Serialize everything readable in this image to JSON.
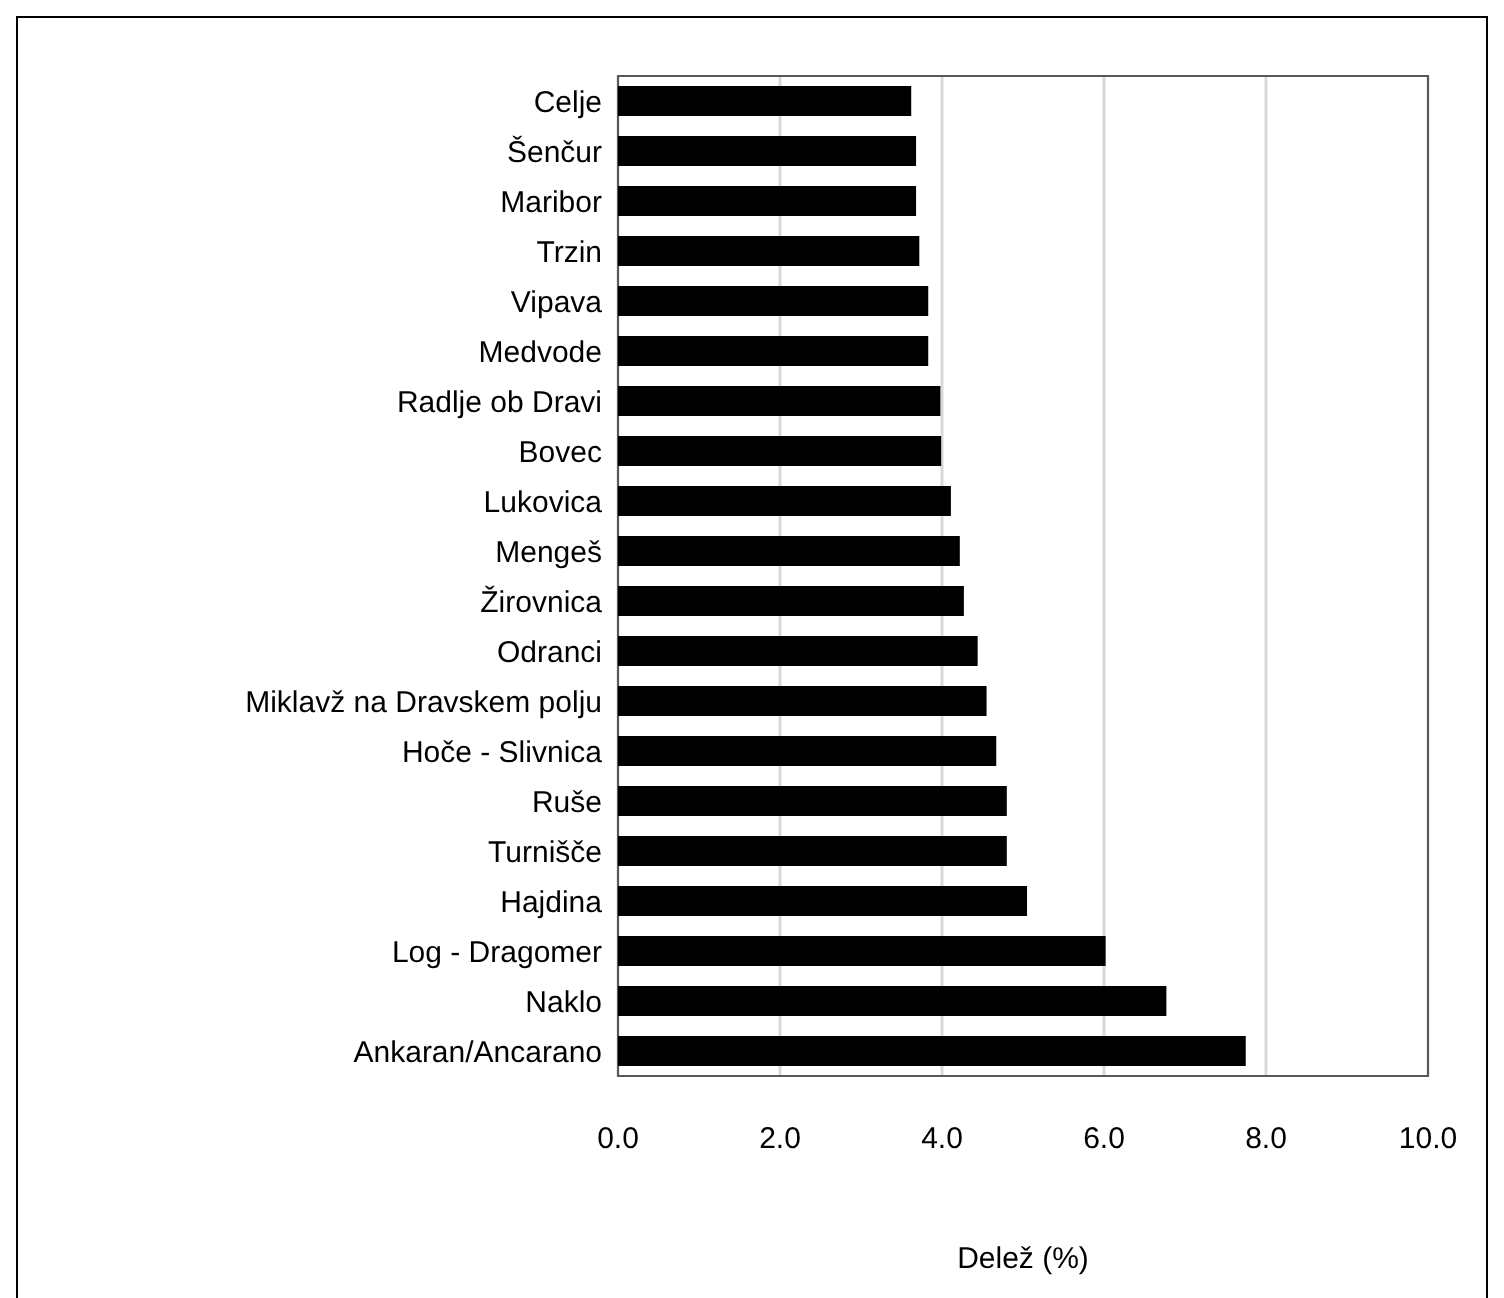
{
  "chart_data": {
    "type": "bar",
    "orientation": "horizontal",
    "xlabel": "Delež (%)",
    "categories": [
      "Celje",
      "Šenčur",
      "Maribor",
      "Trzin",
      "Vipava",
      "Medvode",
      "Radlje ob Dravi",
      "Bovec",
      "Lukovica",
      "Mengeš",
      "Žirovnica",
      "Odranci",
      "Miklavž na Dravskem polju",
      "Hoče - Slivnica",
      "Ruše",
      "Turnišče",
      "Hajdina",
      "Log - Dragomer",
      "Naklo",
      "Ankaran/Ancarano"
    ],
    "values": [
      3.62,
      3.68,
      3.68,
      3.72,
      3.83,
      3.83,
      3.98,
      3.99,
      4.11,
      4.22,
      4.27,
      4.44,
      4.55,
      4.67,
      4.8,
      4.8,
      5.05,
      6.02,
      6.77,
      7.75
    ],
    "color": "#000000",
    "xlim": [
      0,
      10
    ],
    "xticks": [
      {
        "value": 0,
        "label": "0.0"
      },
      {
        "value": 2,
        "label": "2.0"
      },
      {
        "value": 4,
        "label": "4.0"
      },
      {
        "value": 6,
        "label": "6.0"
      },
      {
        "value": 8,
        "label": "8.0"
      },
      {
        "value": 10,
        "label": "10.0"
      }
    ],
    "grid": "x"
  }
}
